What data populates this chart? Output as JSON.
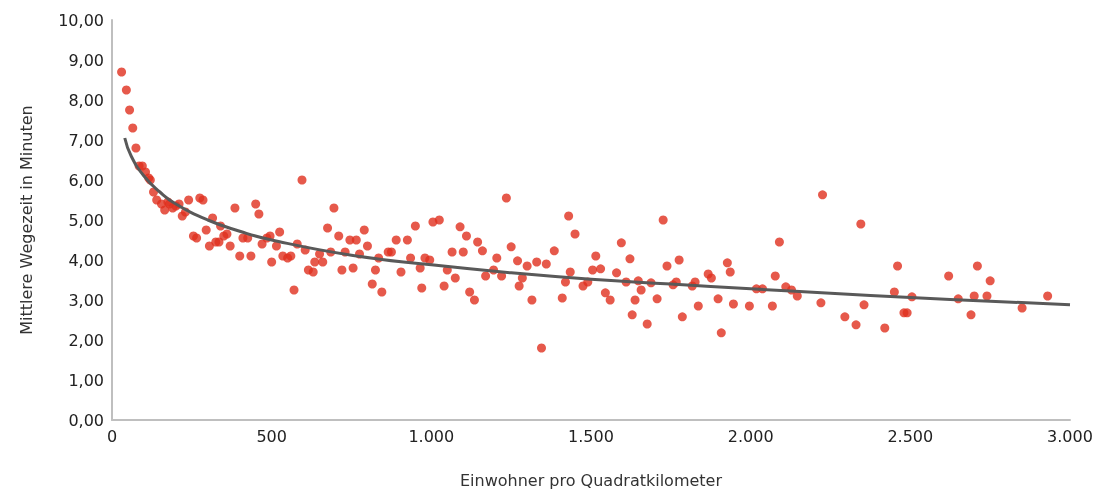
{
  "chart_data": {
    "type": "scatter",
    "xlabel": "Einwohner pro Quadratkilometer",
    "ylabel": "Mittlere Wegezeit in Minuten",
    "xlim": [
      0,
      3000
    ],
    "ylim": [
      0,
      10
    ],
    "xticks": [
      0,
      500,
      {
        "value": 1000,
        "label": "1.000"
      },
      {
        "value": 1500,
        "label": "1.500"
      },
      {
        "value": 2000,
        "label": "2.000"
      },
      {
        "value": 2500,
        "label": "2.500"
      },
      {
        "value": 3000,
        "label": "3.000"
      }
    ],
    "yticks": [
      {
        "value": 0,
        "label": "0,00"
      },
      {
        "value": 1,
        "label": "1,00"
      },
      {
        "value": 2,
        "label": "2,00"
      },
      {
        "value": 3,
        "label": "3,00"
      },
      {
        "value": 4,
        "label": "4,00"
      },
      {
        "value": 5,
        "label": "5,00"
      },
      {
        "value": 6,
        "label": "6,00"
      },
      {
        "value": 7,
        "label": "7,00"
      },
      {
        "value": 8,
        "label": "8,00"
      },
      {
        "value": 9,
        "label": "9,00"
      },
      {
        "value": 10,
        "label": "10,00"
      }
    ],
    "grid": false,
    "marker": "circle",
    "series": [
      {
        "color": "#e0301e",
        "x": [
          30,
          45,
          55,
          65,
          75,
          85,
          95,
          105,
          115,
          120,
          130,
          140,
          155,
          165,
          175,
          180,
          190,
          200,
          210,
          220,
          230,
          240,
          255,
          265,
          275,
          285,
          295,
          305,
          315,
          325,
          335,
          340,
          350,
          360,
          370,
          385,
          400,
          410,
          425,
          435,
          450,
          460,
          470,
          485,
          495,
          500,
          515,
          525,
          535,
          550,
          560,
          570,
          580,
          595,
          605,
          615,
          630,
          635,
          650,
          660,
          675,
          685,
          695,
          710,
          720,
          730,
          745,
          755,
          765,
          775,
          790,
          800,
          815,
          825,
          835,
          845,
          865,
          875,
          890,
          905,
          925,
          935,
          950,
          965,
          970,
          980,
          995,
          1005,
          1025,
          1040,
          1050,
          1065,
          1075,
          1090,
          1100,
          1110,
          1120,
          1135,
          1145,
          1160,
          1170,
          1195,
          1205,
          1220,
          1235,
          1250,
          1270,
          1275,
          1285,
          1300,
          1315,
          1330,
          1345,
          1360,
          1385,
          1410,
          1420,
          1430,
          1435,
          1450,
          1475,
          1490,
          1505,
          1515,
          1530,
          1545,
          1560,
          1580,
          1595,
          1610,
          1622,
          1629,
          1638,
          1648,
          1657,
          1676,
          1688,
          1707,
          1726,
          1738,
          1757,
          1767,
          1776,
          1786,
          1817,
          1826,
          1836,
          1867,
          1877,
          1898,
          1908,
          1927,
          1936,
          1946,
          1996,
          2018,
          2037,
          2068,
          2077,
          2090,
          2110,
          2128,
          2146,
          2220,
          2225,
          2295,
          2330,
          2345,
          2355,
          2420,
          2450,
          2460,
          2480,
          2490,
          2505,
          2620,
          2650,
          2690,
          2700,
          2710,
          2740,
          2750,
          2850,
          2930
        ],
        "values": [
          8.7,
          8.25,
          7.75,
          7.3,
          6.8,
          6.35,
          6.35,
          6.2,
          6.05,
          6.0,
          5.7,
          5.5,
          5.4,
          5.25,
          5.45,
          5.4,
          5.3,
          5.35,
          5.4,
          5.1,
          5.2,
          5.5,
          4.6,
          4.55,
          5.55,
          5.5,
          4.75,
          4.35,
          5.05,
          4.45,
          4.45,
          4.85,
          4.6,
          4.65,
          4.35,
          5.3,
          4.1,
          4.55,
          4.55,
          4.1,
          5.4,
          5.15,
          4.4,
          4.55,
          4.6,
          3.95,
          4.35,
          4.7,
          4.1,
          4.05,
          4.1,
          3.25,
          4.4,
          6.0,
          4.25,
          3.75,
          3.7,
          3.95,
          4.15,
          3.95,
          4.8,
          4.2,
          5.3,
          4.6,
          3.75,
          4.2,
          4.5,
          3.8,
          4.5,
          4.15,
          4.75,
          4.35,
          3.4,
          3.75,
          4.05,
          3.2,
          4.2,
          4.2,
          4.5,
          3.7,
          4.5,
          4.05,
          4.85,
          3.8,
          3.3,
          4.05,
          4.0,
          4.95,
          5.0,
          3.35,
          3.75,
          4.2,
          3.55,
          4.83,
          4.2,
          4.6,
          3.2,
          3.0,
          4.45,
          4.23,
          3.6,
          3.75,
          4.05,
          3.6,
          5.55,
          4.33,
          3.98,
          3.35,
          3.55,
          3.85,
          3.0,
          3.95,
          1.8,
          3.9,
          4.23,
          3.05,
          3.45,
          5.1,
          3.7,
          4.65,
          3.35,
          3.45,
          3.75,
          4.1,
          3.78,
          3.18,
          3.0,
          3.68,
          4.43,
          3.45,
          4.03,
          2.63,
          3.0,
          3.48,
          3.25,
          2.4,
          3.43,
          3.03,
          5.0,
          3.85,
          3.38,
          3.45,
          4.0,
          2.58,
          3.35,
          3.45,
          2.85,
          3.65,
          3.55,
          3.03,
          2.18,
          3.93,
          3.7,
          2.9,
          2.85,
          3.28,
          3.28,
          2.85,
          3.6,
          4.45,
          3.33,
          3.25,
          3.1,
          2.93,
          5.63,
          2.58,
          2.38,
          4.9,
          2.88,
          2.3,
          3.2,
          3.85,
          2.68,
          2.68,
          3.08,
          3.6,
          3.03,
          2.63,
          3.1,
          3.85,
          3.1,
          3.48,
          2.8,
          3.1
        ]
      },
      {
        "type": "line",
        "color": "#595959",
        "marker": "none",
        "x": [
          40,
          60,
          100,
          150,
          200,
          300,
          400,
          500,
          750,
          1000,
          1250,
          1500,
          1750,
          2000,
          2250,
          2500,
          2750,
          3000
        ],
        "values": [
          7.05,
          6.6,
          6.1,
          5.7,
          5.4,
          5.0,
          4.72,
          4.5,
          4.12,
          3.88,
          3.68,
          3.52,
          3.4,
          3.28,
          3.17,
          3.06,
          2.97,
          2.88
        ]
      }
    ]
  }
}
